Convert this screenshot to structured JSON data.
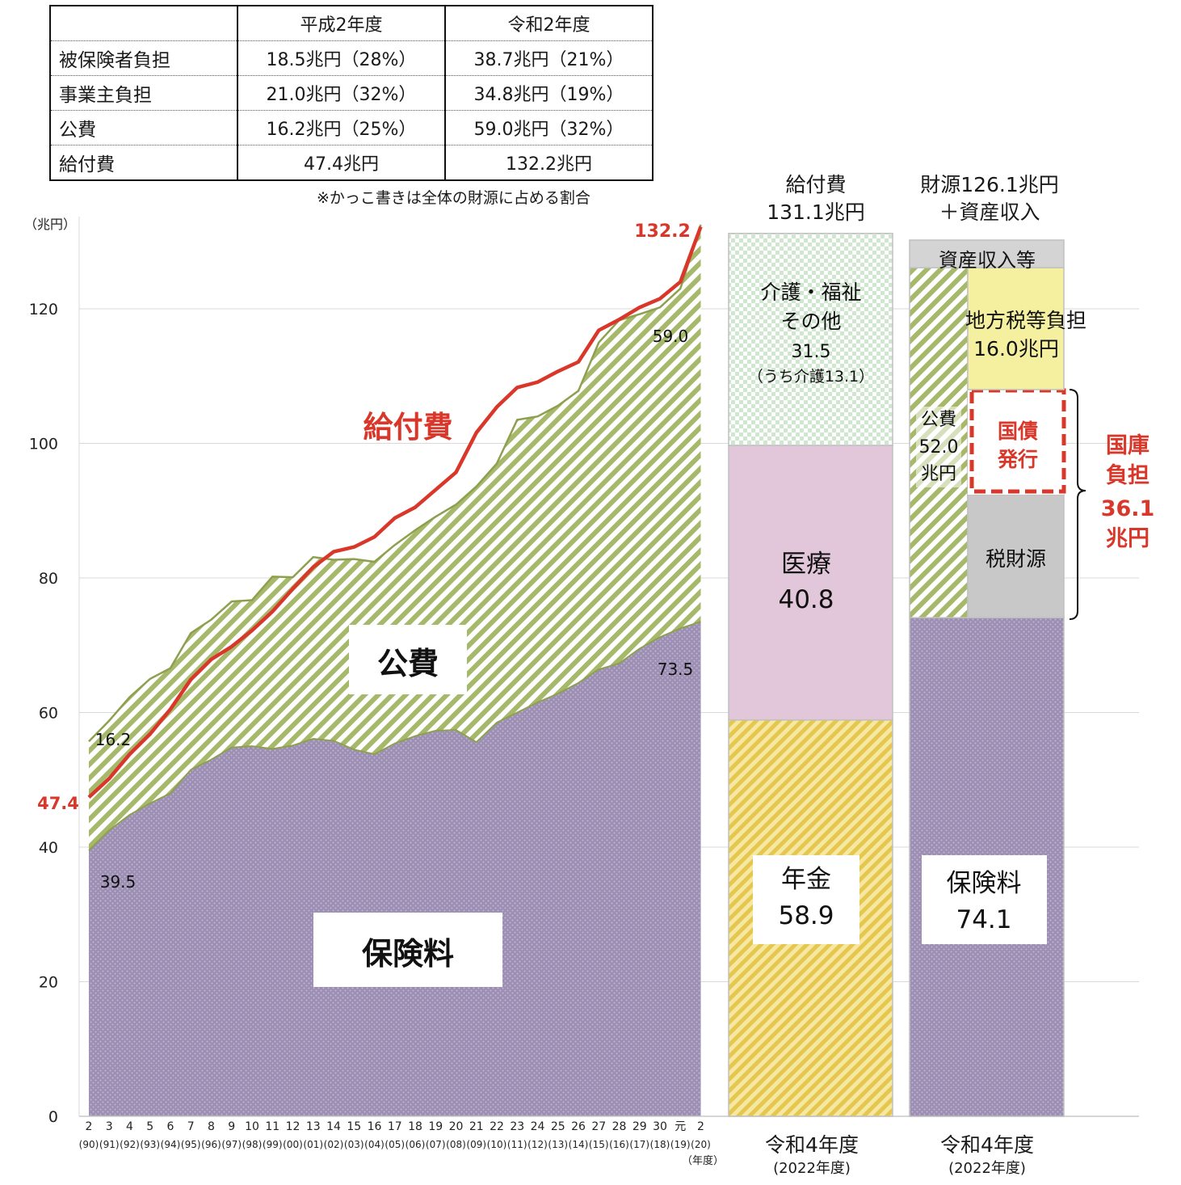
{
  "table": {
    "headers": [
      "",
      "平成2年度",
      "令和2年度"
    ],
    "rows": [
      [
        "被保険者負担",
        "18.5兆円（28%）",
        "38.7兆円（21%）"
      ],
      [
        "事業主負担",
        "21.0兆円（32%）",
        "34.8兆円（19%）"
      ],
      [
        "公費",
        "16.2兆円（25%）",
        "59.0兆円（32%）"
      ],
      [
        "給付費",
        "47.4兆円",
        "132.2兆円"
      ]
    ],
    "note": "※かっこ書きは全体の財源に占める割合"
  },
  "chart_data": [
    {
      "type": "area",
      "unit_label": "（兆円）",
      "x_axis_unit": "（年度）",
      "ylim": [
        0,
        132.2
      ],
      "yticks": [
        0,
        20,
        40,
        60,
        80,
        100,
        120
      ],
      "grid": true,
      "categories": [
        "2",
        "3",
        "4",
        "5",
        "6",
        "7",
        "8",
        "9",
        "10",
        "11",
        "12",
        "13",
        "14",
        "15",
        "16",
        "17",
        "18",
        "19",
        "20",
        "21",
        "22",
        "23",
        "24",
        "25",
        "26",
        "27",
        "28",
        "29",
        "30",
        "元",
        "2"
      ],
      "categories_western": [
        "(90)",
        "(91)",
        "(92)",
        "(93)",
        "(94)",
        "(95)",
        "(96)",
        "(97)",
        "(98)",
        "(99)",
        "(00)",
        "(01)",
        "(02)",
        "(03)",
        "(04)",
        "(05)",
        "(06)",
        "(07)",
        "(08)",
        "(09)",
        "(10)",
        "(11)",
        "(12)",
        "(13)",
        "(14)",
        "(15)",
        "(16)",
        "(17)",
        "(18)",
        "(19)",
        "(20)"
      ],
      "series": [
        {
          "name": "保険料",
          "color": "#9c8fb3",
          "values": [
            39.5,
            42.5,
            44.8,
            46.5,
            48.0,
            51.5,
            53.0,
            54.8,
            55.0,
            54.6,
            55.1,
            56.1,
            55.8,
            54.5,
            53.8,
            55.4,
            56.5,
            57.3,
            57.4,
            55.6,
            58.5,
            60.0,
            61.5,
            62.8,
            64.4,
            66.4,
            67.3,
            69.5,
            71.2,
            72.5,
            73.5
          ]
        },
        {
          "name": "公費",
          "color": "#a6b86a",
          "values": [
            16.2,
            16.3,
            17.5,
            18.5,
            18.6,
            20.3,
            20.8,
            21.7,
            21.7,
            25.6,
            25.0,
            27.0,
            26.9,
            28.3,
            28.6,
            29.5,
            30.6,
            31.8,
            33.5,
            38.0,
            38.5,
            43.5,
            42.5,
            42.8,
            43.4,
            48.6,
            51.0,
            49.7,
            49.0,
            50.5,
            59.0
          ]
        },
        {
          "name": "給付費",
          "color": "#d9372a",
          "values": [
            47.4,
            50.2,
            53.8,
            56.8,
            60.5,
            64.9,
            67.9,
            69.8,
            72.2,
            75.0,
            78.4,
            81.6,
            83.9,
            84.6,
            86.1,
            88.9,
            90.5,
            93.1,
            95.7,
            101.6,
            105.4,
            108.3,
            109.1,
            110.7,
            112.1,
            116.8,
            118.4,
            120.2,
            121.5,
            124.0,
            132.2
          ]
        }
      ],
      "labels": {
        "benefit": "給付費",
        "public": "公費",
        "insurance": "保険料",
        "start_benefit": "47.4",
        "start_public": "16.2",
        "start_insurance": "39.5",
        "end_benefit": "132.2",
        "end_public": "59.0",
        "end_insurance": "73.5"
      }
    },
    {
      "type": "bar",
      "title": "給付費\n131.1兆円",
      "category": "令和4年度",
      "category_sub": "(2022年度)",
      "segments": [
        {
          "name": "年金",
          "value": 58.9,
          "label": "年金",
          "value_label": "58.9",
          "color": "#eed266"
        },
        {
          "name": "医療",
          "value": 40.8,
          "label": "医療",
          "value_label": "40.8",
          "color": "#e2c6da"
        },
        {
          "name": "介護・福祉その他",
          "value": 31.5,
          "lines": [
            "介護・福祉",
            "その他",
            "31.5",
            "（うち介護13.1）"
          ],
          "color": "#e0efe0"
        }
      ]
    },
    {
      "type": "bar",
      "title": "財源126.1兆円\n＋資産収入",
      "category": "令和4年度",
      "category_sub": "(2022年度)",
      "segments": [
        {
          "name": "保険料",
          "value": 74.1,
          "label": "保険料",
          "value_label": "74.1",
          "color": "#9c8fb3"
        },
        {
          "name": "公費",
          "value": 52.0,
          "lines": [
            "公費",
            "52.0",
            "兆円"
          ],
          "color": "#a6b86a"
        },
        {
          "name": "資産収入等",
          "label": "資産収入等",
          "color": "#d4d4d4"
        }
      ],
      "public_breakdown": [
        {
          "name": "税財源",
          "label": "税財源",
          "color": "#c8c8c8"
        },
        {
          "name": "国債発行",
          "lines": [
            "国債",
            "発行"
          ],
          "color": "#d9372a"
        },
        {
          "name": "地方税等負担",
          "lines": [
            "地方税等負担",
            "16.0兆円"
          ],
          "color": "#f4f0a0"
        }
      ],
      "national_treasury": {
        "lines": [
          "国庫",
          "負担",
          "36.1",
          "兆円"
        ],
        "value": 36.1,
        "color": "#d9372a"
      }
    }
  ]
}
